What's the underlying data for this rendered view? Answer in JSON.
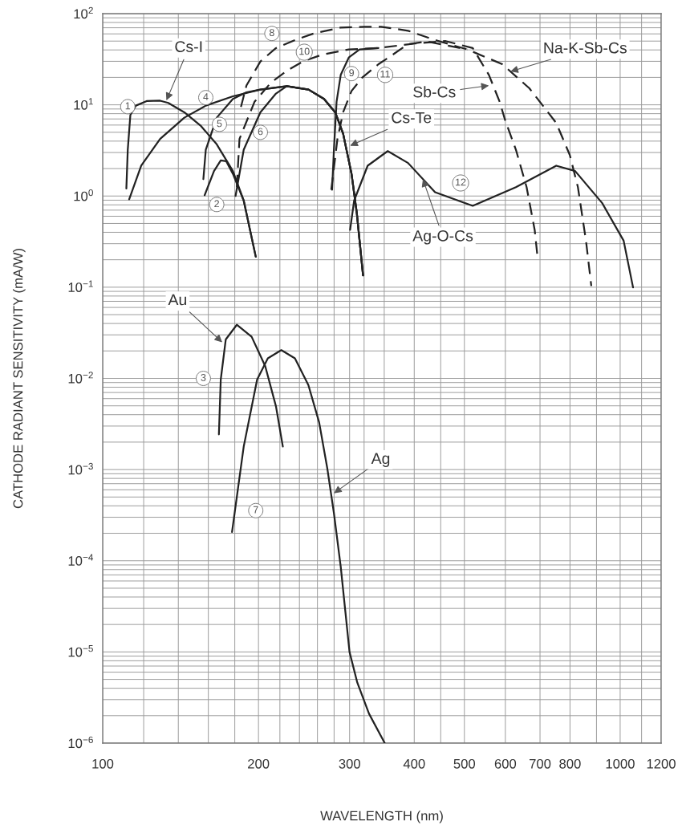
{
  "chart_data": {
    "type": "line",
    "xlabel": "WAVELENGTH (nm)",
    "ylabel": "CATHODE RADIANT SENSITIVITY (mA/W)",
    "log": "xy",
    "grid": true,
    "marker": "none",
    "xlim": [
      100,
      1200
    ],
    "ylim": [
      1e-06,
      100
    ],
    "xticks": [
      100,
      {
        "value": 120,
        "label": null
      },
      {
        "value": 140,
        "label": null
      },
      {
        "value": 160,
        "label": null
      },
      {
        "value": 180,
        "label": null
      },
      200,
      {
        "value": 220,
        "label": null
      },
      {
        "value": 240,
        "label": null
      },
      {
        "value": 260,
        "label": null
      },
      {
        "value": 280,
        "label": null
      },
      300,
      {
        "value": 320,
        "label": null
      },
      {
        "value": 350,
        "label": null
      },
      400,
      {
        "value": 450,
        "label": null
      },
      500,
      600,
      700,
      800,
      {
        "value": 900,
        "label": null
      },
      1000,
      {
        "value": 1100,
        "label": null
      },
      1200
    ],
    "yticks": [
      {
        "value": 1e-06,
        "label": "10$^{−6}$"
      },
      {
        "value": 2e-06,
        "label": null
      },
      {
        "value": 3e-06,
        "label": null
      },
      {
        "value": 4e-06,
        "label": null
      },
      {
        "value": 5e-06,
        "label": null
      },
      {
        "value": 6e-06,
        "label": null
      },
      {
        "value": 7e-06,
        "label": null
      },
      {
        "value": 8e-06,
        "label": null
      },
      {
        "value": 9e-06,
        "label": null
      },
      {
        "value": 1e-05,
        "label": "10$^{−5}$"
      },
      {
        "value": 2e-05,
        "label": null
      },
      {
        "value": 3e-05,
        "label": null
      },
      {
        "value": 4e-05,
        "label": null
      },
      {
        "value": 5e-05,
        "label": null
      },
      {
        "value": 6e-05,
        "label": null
      },
      {
        "value": 7e-05,
        "label": null
      },
      {
        "value": 8e-05,
        "label": null
      },
      {
        "value": 9e-05,
        "label": null
      },
      {
        "value": 0.0001,
        "label": "10$^{−4}$"
      },
      {
        "value": 0.0002,
        "label": null
      },
      {
        "value": 0.0003,
        "label": null
      },
      {
        "value": 0.0004,
        "label": null
      },
      {
        "value": 0.0005,
        "label": null
      },
      {
        "value": 0.0006,
        "label": null
      },
      {
        "value": 0.0007,
        "label": null
      },
      {
        "value": 0.0008,
        "label": null
      },
      {
        "value": 0.0009,
        "label": null
      },
      {
        "value": 0.001,
        "label": "10$^{−3}$"
      },
      {
        "value": 0.002,
        "label": null
      },
      {
        "value": 0.003,
        "label": null
      },
      {
        "value": 0.004,
        "label": null
      },
      {
        "value": 0.005,
        "label": null
      },
      {
        "value": 0.006,
        "label": null
      },
      {
        "value": 0.007,
        "label": null
      },
      {
        "value": 0.008,
        "label": null
      },
      {
        "value": 0.009,
        "label": null
      },
      {
        "value": 0.01,
        "label": "10$^{−2}$"
      },
      {
        "value": 0.02,
        "label": null
      },
      {
        "value": 0.03,
        "label": null
      },
      {
        "value": 0.04,
        "label": null
      },
      {
        "value": 0.05,
        "label": null
      },
      {
        "value": 0.06,
        "label": null
      },
      {
        "value": 0.07,
        "label": null
      },
      {
        "value": 0.08,
        "label": null
      },
      {
        "value": 0.09,
        "label": null
      },
      {
        "value": 0.1,
        "label": "10$^{−1}$"
      },
      {
        "value": 0.2,
        "label": null
      },
      {
        "value": 0.3,
        "label": null
      },
      {
        "value": 0.4,
        "label": null
      },
      {
        "value": 0.5,
        "label": null
      },
      {
        "value": 0.6,
        "label": null
      },
      {
        "value": 0.7,
        "label": null
      },
      {
        "value": 0.8,
        "label": null
      },
      {
        "value": 0.9,
        "label": null
      },
      {
        "value": 1,
        "label": "10$^{0}$"
      },
      {
        "value": 2,
        "label": null
      },
      {
        "value": 3,
        "label": null
      },
      {
        "value": 4,
        "label": null
      },
      {
        "value": 5,
        "label": null
      },
      {
        "value": 6,
        "label": null
      },
      {
        "value": 7,
        "label": null
      },
      {
        "value": 8,
        "label": null
      },
      {
        "value": 9,
        "label": null
      },
      {
        "value": 10,
        "label": "10$^{1}$"
      },
      {
        "value": 20,
        "label": null
      },
      {
        "value": 30,
        "label": null
      },
      {
        "value": 40,
        "label": null
      },
      {
        "value": 50,
        "label": null
      },
      {
        "value": 60,
        "label": null
      },
      {
        "value": 70,
        "label": null
      },
      {
        "value": 80,
        "label": null
      },
      {
        "value": 90,
        "label": null
      },
      {
        "value": 100,
        "label": "10$^{2}$"
      }
    ],
    "series": [
      {
        "color": "#222222",
        "line_style": "solid",
        "x": [
          111.1,
          111.8,
          113.1,
          115.9,
          121.6,
          129.1,
          133.9,
          143.8,
          154.6,
          166.1,
          178.5,
          187.3,
          197.6
        ],
        "values": [
          1.21,
          3.22,
          7.74,
          9.8,
          11.0,
          11.1,
          10.5,
          8.28,
          5.91,
          3.69,
          1.88,
          0.89,
          0.216
        ]
      },
      {
        "color": "#222222",
        "line_style": "solid",
        "x": [
          157.4,
          164.1,
          169.1,
          173.2,
          178.5,
          187.3,
          197.6
        ],
        "values": [
          1.02,
          1.88,
          2.46,
          2.41,
          1.75,
          0.89,
          0.216
        ]
      },
      {
        "color": "#222222",
        "line_style": "solid",
        "x": [
          167.7,
          169.1,
          172.9,
          181.6,
          194.0,
          206.1,
          216.2,
          222.9
        ],
        "values": [
          0.00243,
          0.0097,
          0.0267,
          0.0387,
          0.0286,
          0.0136,
          0.00493,
          0.00179
        ]
      },
      {
        "color": "#222222",
        "line_style": "solid",
        "x": [
          112.5,
          118.7,
          129.1,
          143.8,
          158.2,
          178.5,
          201.7,
          226.8,
          249.9,
          267.7,
          281.4,
          291.5,
          302.6,
          309.9,
          318.5
        ],
        "values": [
          0.92,
          2.15,
          4.22,
          7.23,
          9.8,
          12.4,
          14.7,
          16.0,
          14.7,
          11.6,
          8.28,
          4.82,
          1.75,
          0.64,
          0.135
        ]
      },
      {
        "color": "#222222",
        "line_style": "solid",
        "x": [
          156.5,
          158.2,
          166.1,
          178.5,
          189.6,
          201.7,
          226.8,
          249.9,
          267.7,
          281.4,
          291.5,
          302.6,
          309.9,
          318.5
        ],
        "values": [
          1.53,
          3.22,
          7.23,
          11.6,
          13.7,
          14.7,
          16.0,
          14.7,
          11.6,
          8.28,
          4.82,
          1.75,
          0.64,
          0.135
        ]
      },
      {
        "color": "#222222",
        "line_style": "solid",
        "x": [
          180.6,
          187.3,
          201.7,
          216.2,
          226.8,
          249.9,
          267.7,
          281.4,
          291.5,
          302.6,
          309.9,
          318.5
        ],
        "values": [
          1.0,
          3.22,
          8.28,
          13.3,
          16.0,
          14.7,
          11.6,
          8.28,
          4.82,
          1.75,
          0.64,
          0.135
        ]
      },
      {
        "color": "#222222",
        "line_style": "solid",
        "x": [
          177.8,
          187.3,
          198.8,
          208.5,
          221.4,
          235.2,
          249.7,
          262.0,
          271.6,
          279.8,
          288.4,
          299.9,
          310.5,
          327.1,
          350.8
        ],
        "values": [
          0.000207,
          0.00179,
          0.0097,
          0.0166,
          0.0204,
          0.0166,
          0.00847,
          0.00329,
          0.00104,
          0.000332,
          8.6e-05,
          1e-05,
          4.6e-06,
          2.1e-06,
          1e-06
        ]
      },
      {
        "color": "#222222",
        "line_style": "dashed",
        "x": [
          185.0,
          189.6,
          201.7,
          216.2,
          235.2,
          255.7,
          288.4,
          321.2,
          345.1,
          389.2,
          438.8,
          506.6,
          591.9,
          667.6,
          752.5,
          799.3,
          828.6,
          858.9,
          879.5
        ],
        "values": [
          9.5,
          16.3,
          29.9,
          41.9,
          51.3,
          60.6,
          70.4,
          71.9,
          71.9,
          64.9,
          51.3,
          40.5,
          27.9,
          15.2,
          6.32,
          2.81,
          1.25,
          0.324,
          0.103
        ]
      },
      {
        "color": "#222222",
        "line_style": "solid",
        "x": [
          277.5,
          279.8,
          283.1,
          288.4,
          298.9,
          313.6,
          341.1
        ],
        "values": [
          1.17,
          3.22,
          10.8,
          21.3,
          33.0,
          40.5,
          41.9
        ]
      },
      {
        "color": "#222222",
        "line_style": "dashed",
        "x": [
          181.6,
          183.8,
          196.5,
          211.2,
          226.8,
          243.8,
          265.1,
          298.9,
          341.1,
          400,
          460,
          518.9,
          557.6,
          585.0,
          599.5,
          628.8,
          659.5,
          683.6,
          692.2
        ],
        "values": [
          1.25,
          4.22,
          10.8,
          17.4,
          23.6,
          29.9,
          35.4,
          40.5,
          41.9,
          47,
          50,
          41.9,
          21.3,
          10.8,
          6.76,
          3.22,
          1.25,
          0.425,
          0.216
        ]
      },
      {
        "color": "#222222",
        "line_style": "dashed",
        "x": [
          276.5,
          284.2,
          291.5,
          302.6,
          317.4,
          341.1,
          353.6,
          389.2,
          423.3,
          506.6
        ],
        "values": [
          1.17,
          4.22,
          8.28,
          14.2,
          19.9,
          27.9,
          31.9,
          46.3,
          49.5,
          40.5
        ]
      },
      {
        "color": "#222222",
        "line_style": "solid",
        "x": [
          300.7,
          306.1,
          325.1,
          355.5,
          389.2,
          438.8,
          518.9,
          628.8,
          752.5,
          818.4,
          923.3,
          1015.5,
          1059
        ],
        "values": [
          0.425,
          0.89,
          2.15,
          3.11,
          2.3,
          1.1,
          0.78,
          1.25,
          2.15,
          1.88,
          0.835,
          0.324,
          0.0995
        ]
      }
    ],
    "annotations": [
      {
        "text": "Cs-I",
        "x": 132.8,
        "y": 11.2
      },
      {
        "text": "Au",
        "x": 170.2,
        "y": 0.0249
      },
      {
        "text": "Ag",
        "x": 279.8,
        "y": 0.00055
      },
      {
        "text": "Cs-Te",
        "x": 300.7,
        "y": 3.56
      },
      {
        "text": "Ag-O-Cs",
        "x": 415.7,
        "y": 1.53
      },
      {
        "text": "Sb-Cs",
        "x": 557.6,
        "y": 16.3
      },
      {
        "text": "Na-K-Sb-Cs",
        "x": 613.8,
        "y": 23.2
      },
      {
        "text": "1",
        "x": 111.8,
        "y": 9.55
      },
      {
        "text": "2",
        "x": 166.1,
        "y": 0.807
      },
      {
        "text": "3",
        "x": 156.5,
        "y": 0.01
      },
      {
        "text": "4",
        "x": 158.2,
        "y": 12.0
      },
      {
        "text": "5",
        "x": 168.1,
        "y": 6.11
      },
      {
        "text": "6",
        "x": 201.7,
        "y": 4.99
      },
      {
        "text": "7",
        "x": 197.6,
        "y": 0.000355
      },
      {
        "text": "8",
        "x": 212.3,
        "y": 60.6
      },
      {
        "text": "9",
        "x": 302.6,
        "y": 22.0
      },
      {
        "text": "10",
        "x": 245.2,
        "y": 37.8
      },
      {
        "text": "11",
        "x": 351.4,
        "y": 21.3
      },
      {
        "text": "12",
        "x": 491.6,
        "y": 1.39
      }
    ]
  }
}
